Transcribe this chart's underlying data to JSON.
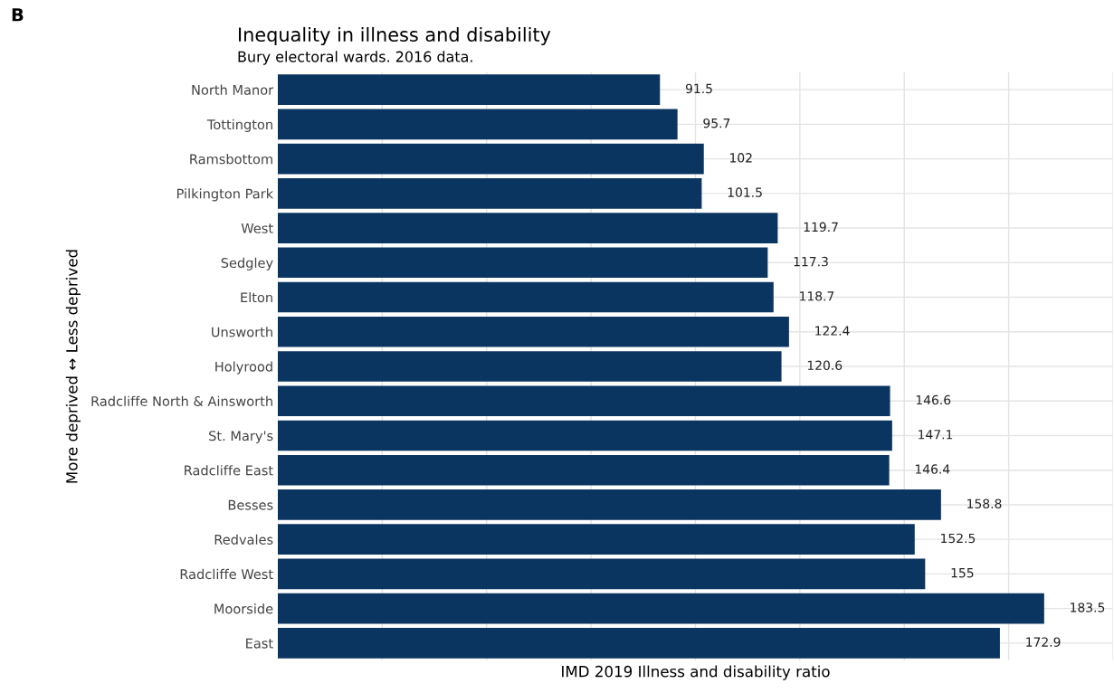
{
  "chart_data": {
    "type": "bar",
    "orientation": "horizontal",
    "title": "Inequality in illness and disability",
    "subtitle": "Bury electoral wards. 2016 data.",
    "xlabel": "IMD 2019 Illness and disability ratio",
    "ylabel": "More deprived ↔ Less deprived",
    "annotations": [
      "B"
    ],
    "categories": [
      "North Manor",
      "Tottington",
      "Ramsbottom",
      "Pilkington Park",
      "West",
      "Sedgley",
      "Elton",
      "Unsworth",
      "Holyrood",
      "Radcliffe North & Ainsworth",
      "St. Mary's",
      "Radcliffe East",
      "Besses",
      "Redvales",
      "Radcliffe West",
      "Moorside",
      "East"
    ],
    "values": [
      91.5,
      95.7,
      102,
      101.5,
      119.7,
      117.3,
      118.7,
      122.4,
      120.6,
      146.6,
      147.1,
      146.4,
      158.8,
      152.5,
      155,
      183.5,
      172.9
    ],
    "color": "#0b3561",
    "data_labels": true,
    "xlim": [
      0,
      200
    ],
    "xticks": [
      {
        "value": 0,
        "label": null
      },
      {
        "value": 25,
        "label": null
      },
      {
        "value": 50,
        "label": null
      },
      {
        "value": 75,
        "label": null
      },
      {
        "value": 100,
        "label": null
      },
      {
        "value": 125,
        "label": null
      },
      {
        "value": 150,
        "label": null
      },
      {
        "value": 175,
        "label": null
      },
      {
        "value": 200,
        "label": null
      }
    ],
    "grid": true,
    "tick_labels": "y"
  }
}
